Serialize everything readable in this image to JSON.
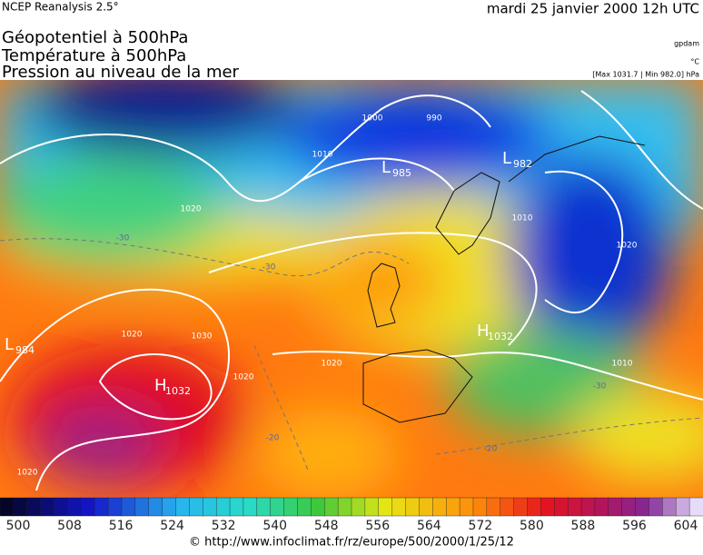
{
  "header": {
    "source": "NCEP Reanalysis 2.5°",
    "date": "mardi 25 janvier 2000 12h UTC"
  },
  "titles": [
    "Géopotentiel à 500hPa",
    "Température à 500hPa",
    "Pression au niveau de la mer"
  ],
  "units": [
    "gpdam",
    "°C",
    "[Max 1031.7 | Min 982.0] hPa"
  ],
  "map": {
    "centers": [
      {
        "letter": "L",
        "value": 985
      },
      {
        "letter": "L",
        "value": 982
      },
      {
        "letter": "H",
        "value": 1032
      },
      {
        "letter": "H",
        "value": 1032
      },
      {
        "letter": "L",
        "value": 984
      }
    ],
    "isobar_labels": [
      1010,
      1000,
      990,
      1020,
      1020,
      1030,
      1020,
      1020,
      1020,
      1020,
      1010,
      1010
    ],
    "temperature_labels": [
      -30,
      -30,
      -20,
      -20,
      -30
    ]
  },
  "colorbar": {
    "ticks": [
      500,
      508,
      516,
      524,
      532,
      540,
      548,
      556,
      564,
      572,
      580,
      588,
      596,
      604
    ]
  },
  "footer": "© http://www.infoclimat.fr/rz/europe/500/2000/1/25/12"
}
